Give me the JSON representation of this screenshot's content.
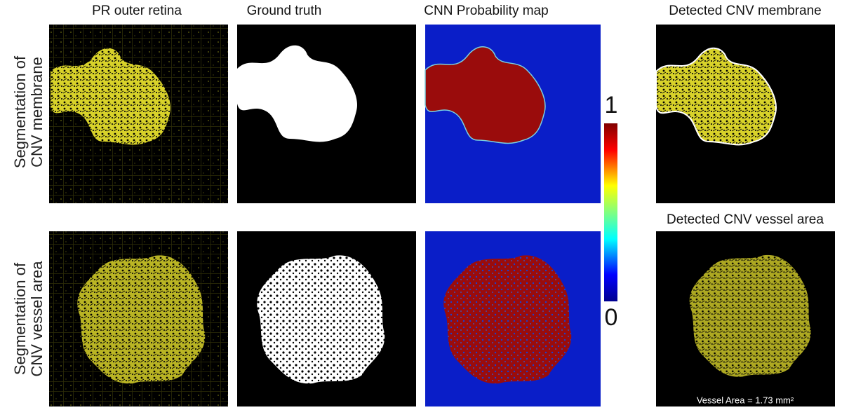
{
  "columns": [
    "PR outer retina",
    "Ground truth",
    "CNN Probability map"
  ],
  "detected_titles": [
    "Detected CNV membrane",
    "Detected CNV vessel area"
  ],
  "rows": [
    [
      "Segmentation of",
      "CNV membrane"
    ],
    [
      "Segmentation of",
      "CNV vessel area"
    ]
  ],
  "colorbar": {
    "max": 1,
    "min": 0
  },
  "vessel_area": "Vessel Area = 1.73 mm²"
}
